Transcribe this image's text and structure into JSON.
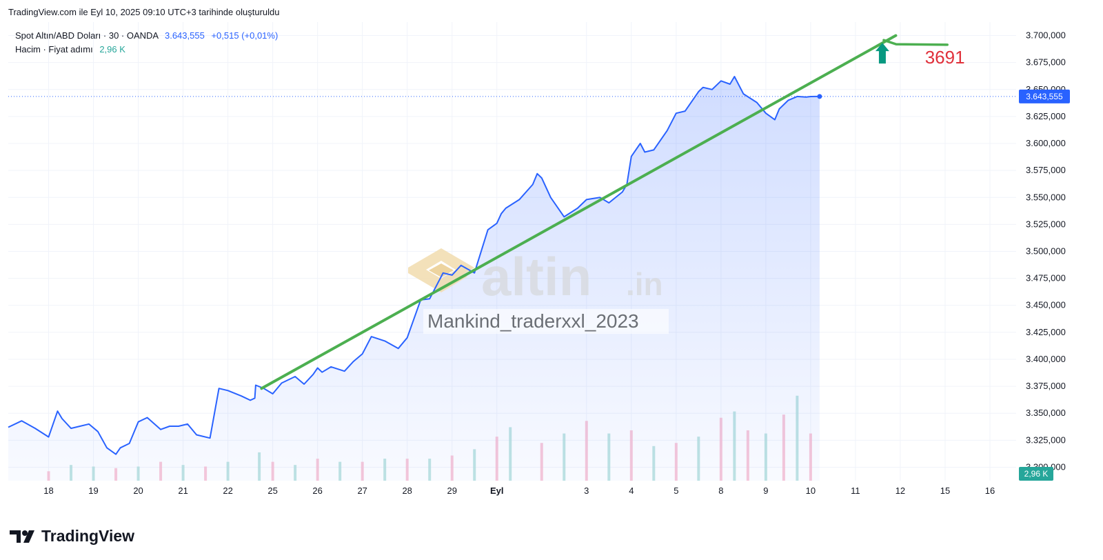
{
  "header": {
    "note": "TradingView.com ile Eyl 10, 2025 09:10 UTC+3 tarihinde oluşturuldu"
  },
  "legend": {
    "symbol": "Spot Altın/ABD Doları · 30 · OANDA",
    "price": "3.643,555",
    "change": "+0,515 (+0,01%)",
    "volume_label": "Hacim · Fiyat adımı",
    "volume_value": "2,96 K"
  },
  "watermark": {
    "logo_text": "altin",
    "logo_suffix": ".in",
    "author": "Mankind_traderxxl_2023"
  },
  "annotation": {
    "target_text": "3691"
  },
  "brand": {
    "name": "TradingView"
  },
  "colors": {
    "line": "#2962ff",
    "trend": "#4caf50",
    "arrow": "#089981",
    "note": "#e0303a",
    "price_badge": "#2962ff",
    "vol_badge": "#26a69a",
    "vol_up": "#b2dfdb",
    "vol_down": "#f8bbd0"
  },
  "chart_data": {
    "type": "area",
    "title": "Spot Altın/ABD Doları · 30 · OANDA",
    "xlabel": "",
    "ylabel": "",
    "ylim": [
      3287.5,
      3712.5
    ],
    "y_ticks": [
      3300,
      3325,
      3350,
      3375,
      3400,
      3425,
      3450,
      3475,
      3500,
      3525,
      3550,
      3575,
      3600,
      3625,
      3650,
      3675,
      3700
    ],
    "y_tick_labels": [
      "3.300,000",
      "3.325,000",
      "3.350,000",
      "3.375,000",
      "3.400,000",
      "3.425,000",
      "3.450,000",
      "3.475,000",
      "3.500,000",
      "3.525,000",
      "3.550,000",
      "3.575,000",
      "3.600,000",
      "3.625,000",
      "3.650,000",
      "3.675,000",
      "3.700,000"
    ],
    "x_ticks": [
      {
        "label": "18",
        "pos": 0
      },
      {
        "label": "19",
        "pos": 1
      },
      {
        "label": "20",
        "pos": 2
      },
      {
        "label": "21",
        "pos": 3
      },
      {
        "label": "22",
        "pos": 4
      },
      {
        "label": "25",
        "pos": 5
      },
      {
        "label": "26",
        "pos": 6
      },
      {
        "label": "27",
        "pos": 7
      },
      {
        "label": "28",
        "pos": 8
      },
      {
        "label": "29",
        "pos": 9
      },
      {
        "label": "Eyl",
        "pos": 10,
        "bold": true
      },
      {
        "label": "3",
        "pos": 12
      },
      {
        "label": "4",
        "pos": 13
      },
      {
        "label": "5",
        "pos": 14
      },
      {
        "label": "8",
        "pos": 15
      },
      {
        "label": "9",
        "pos": 16
      },
      {
        "label": "10",
        "pos": 17
      },
      {
        "label": "11",
        "pos": 18
      },
      {
        "label": "12",
        "pos": 19
      },
      {
        "label": "15",
        "pos": 20
      },
      {
        "label": "16",
        "pos": 21
      }
    ],
    "x_range": [
      -0.9,
      21.4
    ],
    "series": [
      {
        "x": [
          -0.9,
          -0.6,
          -0.3,
          0,
          0.2,
          0.3,
          0.5,
          0.7,
          0.9,
          1.1,
          1.3,
          1.5,
          1.6,
          1.8,
          2,
          2.2,
          2.5,
          2.7,
          2.9,
          3.1,
          3.3,
          3.6,
          3.8,
          4,
          4.3,
          4.5,
          4.6,
          4.62,
          4.8,
          5,
          5.2,
          5.5,
          5.7,
          5.9,
          6,
          6.1,
          6.3,
          6.6,
          6.8,
          7,
          7.2,
          7.5,
          7.8,
          8,
          8.3,
          8.5,
          8.8,
          9,
          9.2,
          9.5,
          9.8,
          10,
          10.1,
          10.2,
          10.5,
          10.8,
          10.9,
          11,
          11.2,
          11.5,
          11.8,
          12,
          12.3,
          12.5,
          12.8,
          12.9,
          13.0,
          13.2,
          13.3,
          13.5,
          13.8,
          14,
          14.2,
          14.5,
          14.6,
          14.8,
          15,
          15.2,
          15.3,
          15.5,
          15.8,
          16,
          16.2,
          16.3,
          16.5,
          16.7,
          16.9,
          17,
          17.1,
          17.2
        ],
        "y": [
          3337,
          3343,
          3336,
          3328,
          3352,
          3345,
          3336,
          3338,
          3340,
          3333,
          3318,
          3312,
          3318,
          3322,
          3342,
          3346,
          3335,
          3338,
          3338,
          3340,
          3330,
          3327,
          3373,
          3371,
          3366,
          3362,
          3364,
          3376,
          3373,
          3368,
          3378,
          3384,
          3377,
          3386,
          3392,
          3388,
          3393,
          3389,
          3398,
          3405,
          3421,
          3417,
          3410,
          3420,
          3455,
          3456,
          3480,
          3478,
          3487,
          3480,
          3520,
          3526,
          3535,
          3540,
          3548,
          3562,
          3572,
          3568,
          3550,
          3532,
          3540,
          3548,
          3550,
          3545,
          3555,
          3562,
          3588,
          3600,
          3592,
          3594,
          3612,
          3628,
          3630,
          3648,
          3652,
          3650,
          3658,
          3655,
          3662,
          3646,
          3638,
          3628,
          3622,
          3632,
          3640,
          3643.555,
          3643,
          3643.5,
          3643.555,
          3643.555
        ],
        "name": ""
      }
    ],
    "volume": {
      "ylim_top_value": 3375,
      "bars": [
        [
          0,
          6,
          0
        ],
        [
          0.5,
          10,
          1
        ],
        [
          1,
          9,
          1
        ],
        [
          1.5,
          8,
          0
        ],
        [
          2,
          9,
          1
        ],
        [
          2.5,
          12,
          0
        ],
        [
          3,
          10,
          1
        ],
        [
          3.5,
          9,
          0
        ],
        [
          4,
          12,
          1
        ],
        [
          4.7,
          18,
          1
        ],
        [
          5,
          12,
          0
        ],
        [
          5.5,
          10,
          1
        ],
        [
          6,
          14,
          0
        ],
        [
          6.5,
          12,
          1
        ],
        [
          7,
          12,
          0
        ],
        [
          7.5,
          14,
          1
        ],
        [
          8,
          14,
          0
        ],
        [
          8.5,
          14,
          1
        ],
        [
          9,
          16,
          0
        ],
        [
          9.5,
          20,
          1
        ],
        [
          10,
          28,
          0
        ],
        [
          10.3,
          34,
          1
        ],
        [
          11,
          24,
          0
        ],
        [
          11.5,
          30,
          1
        ],
        [
          12,
          38,
          0
        ],
        [
          12.5,
          30,
          1
        ],
        [
          13,
          32,
          0
        ],
        [
          13.5,
          22,
          1
        ],
        [
          14,
          24,
          0
        ],
        [
          14.5,
          28,
          1
        ],
        [
          15,
          40,
          0
        ],
        [
          15.3,
          44,
          1
        ],
        [
          15.6,
          32,
          0
        ],
        [
          16,
          30,
          1
        ],
        [
          16.4,
          42,
          0
        ],
        [
          16.7,
          54,
          1
        ],
        [
          17,
          30,
          0
        ]
      ]
    },
    "trendline": {
      "from": [
        4.75,
        3373
      ],
      "to": [
        18.9,
        3700
      ]
    },
    "target_arrow": {
      "x": 18.6,
      "y": 3683,
      "target_level": 3691
    },
    "last_price": 3643.555,
    "last_price_label": "3.643,555",
    "volume_badge_label": "2,96 K"
  }
}
